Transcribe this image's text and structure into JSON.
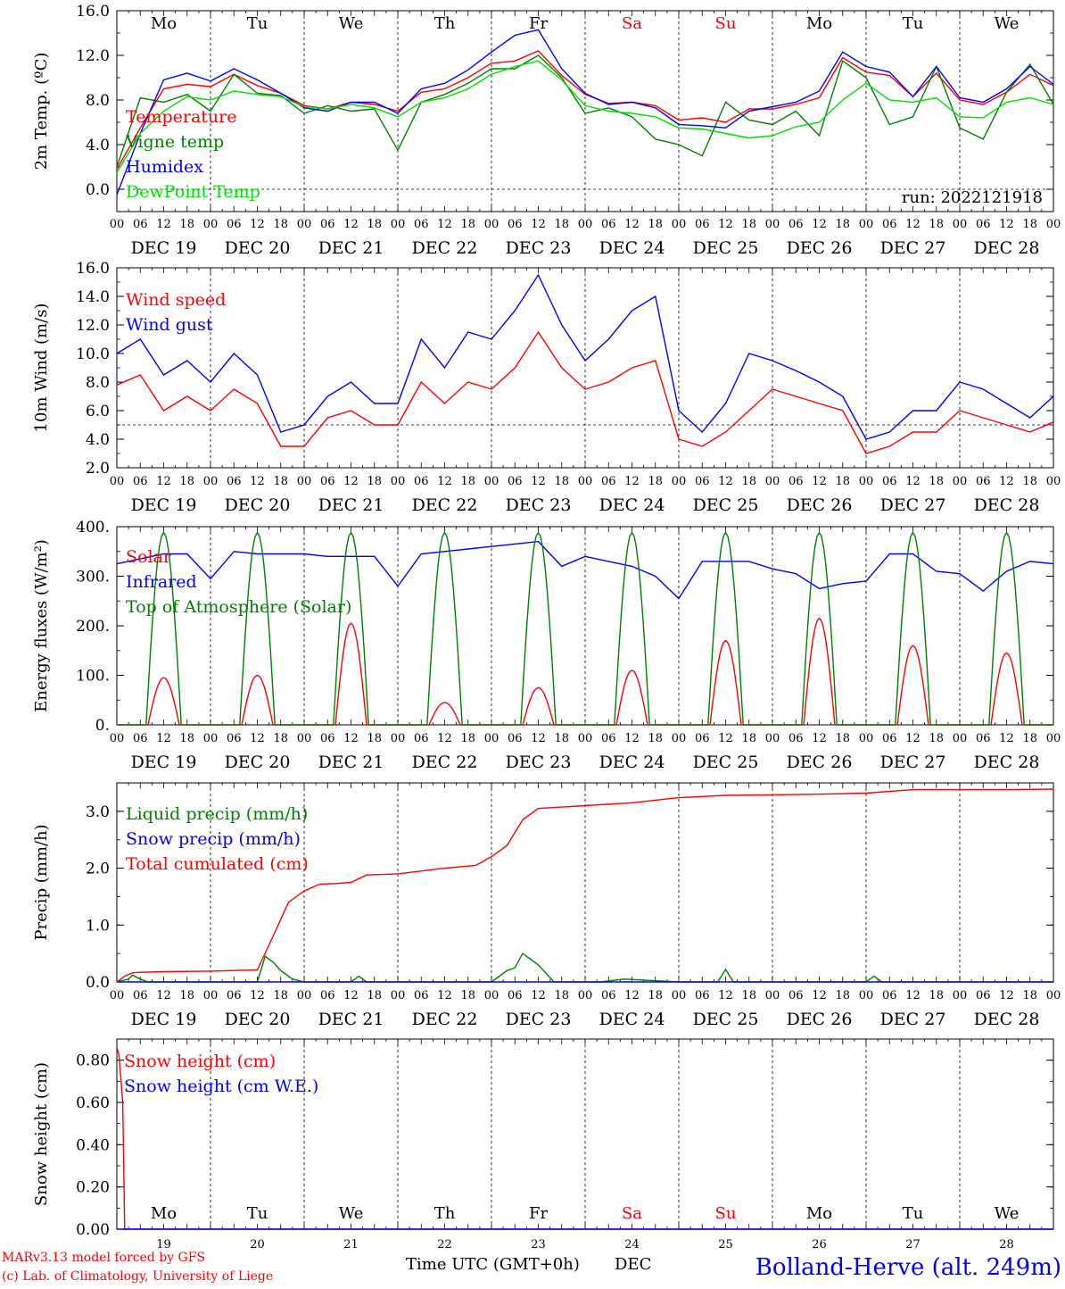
{
  "days": {
    "short": [
      "Mo",
      "Tu",
      "We",
      "Th",
      "Fr",
      "Sa",
      "Su",
      "Mo",
      "Tu",
      "We"
    ],
    "weekend": [
      false,
      false,
      false,
      false,
      false,
      true,
      true,
      false,
      false,
      false
    ],
    "dates": [
      "DEC 19",
      "DEC 20",
      "DEC 21",
      "DEC 22",
      "DEC 23",
      "DEC 24",
      "DEC 25",
      "DEC 26",
      "DEC 27",
      "DEC 28"
    ],
    "numbers": [
      "19",
      "20",
      "21",
      "22",
      "23",
      "24",
      "25",
      "26",
      "27",
      "28"
    ]
  },
  "hour_ticks": [
    "00",
    "06",
    "12",
    "18"
  ],
  "hour_end": "00",
  "colors": {
    "red": "#ff0000",
    "green": "#008000",
    "blue": "#0000ff",
    "lightgreen": "#00e000",
    "purple": "#800080"
  },
  "footer": {
    "left1": "MARv3.13 model forced by GFS",
    "left2": "(c) Lab. of Climatology, University of Liege",
    "center": "Time UTC (GMT+0h)",
    "month": "DEC",
    "station": "Bolland-Herve (alt. 249m)"
  },
  "chart_data": [
    {
      "type": "line",
      "ylabel": "2m Temp. (ºC)",
      "ylim": [
        -2,
        16
      ],
      "yticks": [
        "0.0",
        "4.0",
        "8.0",
        "12.0",
        "16.0"
      ],
      "ytick_values": [
        0,
        4,
        8,
        12,
        16
      ],
      "ref_line": 0,
      "annotation": "run: 2022121918",
      "x_unit": "hours since DEC 19 00 UTC",
      "series": [
        {
          "name": "Temperature",
          "color": "red",
          "x": [
            0,
            6,
            12,
            18,
            24,
            30,
            36,
            42,
            48,
            54,
            60,
            66,
            72,
            78,
            84,
            90,
            96,
            102,
            108,
            114,
            120,
            126,
            132,
            138,
            144,
            150,
            156,
            162,
            168,
            174,
            180,
            186,
            192,
            198,
            204,
            210,
            216,
            222,
            228,
            234,
            240
          ],
          "y": [
            1.8,
            5.5,
            9.0,
            9.4,
            9.2,
            10.3,
            9.3,
            8.6,
            7.5,
            7.2,
            7.8,
            7.6,
            7.0,
            8.7,
            9.0,
            10.0,
            11.3,
            11.5,
            12.4,
            10.2,
            8.5,
            7.7,
            7.8,
            7.5,
            6.2,
            6.4,
            6.0,
            7.2,
            7.2,
            7.6,
            8.2,
            11.8,
            10.5,
            10.2,
            8.3,
            10.4,
            8.0,
            7.6,
            8.7,
            10.3,
            9.3
          ]
        },
        {
          "name": "Vigne temp",
          "color": "green",
          "x": [
            0,
            6,
            12,
            18,
            24,
            30,
            36,
            42,
            48,
            54,
            60,
            66,
            72,
            78,
            84,
            90,
            96,
            102,
            108,
            114,
            120,
            126,
            132,
            138,
            144,
            150,
            156,
            162,
            168,
            174,
            180,
            186,
            192,
            198,
            204,
            210,
            216,
            222,
            228,
            234,
            240
          ],
          "y": [
            2.0,
            8.2,
            7.8,
            8.5,
            7.0,
            10.3,
            8.6,
            8.4,
            6.8,
            7.5,
            7.0,
            7.2,
            3.5,
            7.8,
            8.5,
            9.5,
            10.8,
            10.8,
            12.0,
            10.0,
            6.8,
            7.3,
            6.5,
            4.5,
            4.0,
            3.0,
            7.8,
            6.2,
            5.8,
            7.0,
            4.8,
            11.5,
            10.0,
            5.8,
            6.5,
            11.0,
            5.5,
            4.5,
            8.7,
            11.2,
            7.6
          ]
        },
        {
          "name": "Humidex",
          "color": "blue",
          "x": [
            0,
            6,
            12,
            18,
            24,
            30,
            36,
            42,
            48,
            54,
            60,
            66,
            72,
            78,
            84,
            90,
            96,
            102,
            108,
            114,
            120,
            126,
            132,
            138,
            144,
            150,
            156,
            162,
            168,
            174,
            180,
            186,
            192,
            198,
            204,
            210,
            216,
            222,
            228,
            234,
            240
          ],
          "y": [
            -0.5,
            5.0,
            9.8,
            10.4,
            9.7,
            10.8,
            9.8,
            8.6,
            7.3,
            7.0,
            7.8,
            7.8,
            6.8,
            9.0,
            9.5,
            10.7,
            12.3,
            13.8,
            14.3,
            10.8,
            8.6,
            7.6,
            7.8,
            7.3,
            5.8,
            5.7,
            5.5,
            7.0,
            7.4,
            7.8,
            8.8,
            12.3,
            11.0,
            10.5,
            8.3,
            11.0,
            8.2,
            7.8,
            9.0,
            11.0,
            9.4
          ]
        },
        {
          "name": "DewPoint Temp",
          "color": "lightgreen",
          "x": [
            0,
            6,
            12,
            18,
            24,
            30,
            36,
            42,
            48,
            54,
            60,
            66,
            72,
            78,
            84,
            90,
            96,
            102,
            108,
            114,
            120,
            126,
            132,
            138,
            144,
            150,
            156,
            162,
            168,
            174,
            180,
            186,
            192,
            198,
            204,
            210,
            216,
            222,
            228,
            234,
            240
          ],
          "y": [
            1.5,
            5.0,
            7.0,
            8.3,
            8.0,
            8.8,
            8.5,
            8.3,
            7.4,
            7.2,
            7.6,
            7.3,
            6.5,
            7.8,
            8.2,
            9.0,
            10.3,
            11.0,
            11.5,
            9.8,
            7.5,
            7.0,
            6.8,
            6.5,
            5.5,
            5.4,
            5.0,
            4.6,
            4.8,
            5.6,
            6.0,
            8.0,
            9.5,
            8.0,
            7.8,
            8.2,
            6.5,
            6.4,
            7.8,
            8.2,
            7.6
          ]
        }
      ]
    },
    {
      "type": "line",
      "ylabel": "10m Wind (m/s)",
      "ylim": [
        2,
        16
      ],
      "yticks": [
        "2.0",
        "4.0",
        "6.0",
        "8.0",
        "10.0",
        "12.0",
        "14.0",
        "16.0"
      ],
      "ytick_values": [
        2,
        4,
        6,
        8,
        10,
        12,
        14,
        16
      ],
      "ref_line": 5,
      "x_unit": "hours since DEC 19 00 UTC",
      "series": [
        {
          "name": "Wind speed",
          "color": "red",
          "x": [
            0,
            6,
            12,
            18,
            24,
            30,
            36,
            42,
            48,
            54,
            60,
            66,
            72,
            78,
            84,
            90,
            96,
            102,
            108,
            114,
            120,
            126,
            132,
            138,
            144,
            150,
            156,
            162,
            168,
            174,
            180,
            186,
            192,
            198,
            204,
            210,
            216,
            222,
            228,
            234,
            240
          ],
          "y": [
            7.8,
            8.5,
            6.0,
            7.0,
            6.0,
            7.5,
            6.5,
            3.5,
            3.5,
            5.5,
            6.0,
            5.0,
            5.0,
            8.0,
            6.5,
            8.0,
            7.5,
            9.0,
            11.5,
            9.0,
            7.5,
            8.0,
            9.0,
            9.5,
            4.0,
            3.5,
            4.5,
            6.0,
            7.5,
            7.0,
            6.5,
            6.0,
            3.0,
            3.5,
            4.5,
            4.5,
            6.0,
            5.5,
            5.0,
            4.5,
            5.2
          ]
        },
        {
          "name": "Wind gust",
          "color": "blue",
          "x": [
            0,
            6,
            12,
            18,
            24,
            30,
            36,
            42,
            48,
            54,
            60,
            66,
            72,
            78,
            84,
            90,
            96,
            102,
            108,
            114,
            120,
            126,
            132,
            138,
            144,
            150,
            156,
            162,
            168,
            174,
            180,
            186,
            192,
            198,
            204,
            210,
            216,
            222,
            228,
            234,
            240
          ],
          "y": [
            10.0,
            11.0,
            8.5,
            9.5,
            8.0,
            10.0,
            8.5,
            4.5,
            5.0,
            7.0,
            8.0,
            6.5,
            6.5,
            11.0,
            9.0,
            11.5,
            11.0,
            13.0,
            15.5,
            12.0,
            9.5,
            11.0,
            13.0,
            14.0,
            6.0,
            4.5,
            6.5,
            10.0,
            9.5,
            8.8,
            8.0,
            7.0,
            4.0,
            4.5,
            6.0,
            6.0,
            8.0,
            7.5,
            6.5,
            5.5,
            7.0
          ]
        }
      ]
    },
    {
      "type": "line",
      "ylabel": "Energy fluxes (W/m²)",
      "ylim": [
        0,
        400
      ],
      "yticks": [
        "0.",
        "100.",
        "200.",
        "300.",
        "400."
      ],
      "ytick_values": [
        0,
        100,
        200,
        300,
        400
      ],
      "x_unit": "hours since DEC 19 00 UTC",
      "series": [
        {
          "name": "Solar",
          "color": "red",
          "daily_peak_hour": 12,
          "daily_halfwidth_hours": 4,
          "daily_peaks": [
            95,
            100,
            205,
            45,
            75,
            110,
            170,
            215,
            160,
            145
          ]
        },
        {
          "name": "Infrared",
          "color": "blue",
          "x": [
            0,
            6,
            12,
            18,
            24,
            30,
            36,
            42,
            48,
            54,
            60,
            66,
            72,
            78,
            84,
            90,
            96,
            102,
            108,
            114,
            120,
            126,
            132,
            138,
            144,
            150,
            156,
            162,
            168,
            174,
            180,
            186,
            192,
            198,
            204,
            210,
            216,
            222,
            228,
            234,
            240
          ],
          "y": [
            325,
            335,
            345,
            345,
            295,
            350,
            345,
            345,
            345,
            340,
            340,
            340,
            280,
            345,
            350,
            355,
            360,
            365,
            370,
            320,
            340,
            330,
            320,
            300,
            255,
            330,
            330,
            330,
            315,
            305,
            275,
            285,
            290,
            345,
            345,
            310,
            305,
            270,
            310,
            330,
            325
          ]
        },
        {
          "name": "Top of Atmosphere (Solar)",
          "color": "green",
          "daily_peak_hour": 12,
          "daily_halfwidth_hours": 4.5,
          "daily_peaks": [
            388,
            388,
            388,
            388,
            388,
            388,
            388,
            388,
            388,
            388
          ]
        }
      ]
    },
    {
      "type": "line",
      "ylabel": "Precip (mm/h)",
      "ylim": [
        0,
        3.5
      ],
      "yticks": [
        "0.0",
        "1.0",
        "2.0",
        "3.0"
      ],
      "ytick_values": [
        0,
        1,
        2,
        3
      ],
      "x_unit": "hours since DEC 19 00 UTC",
      "series": [
        {
          "name": "Liquid precip (mm/h)",
          "color": "green",
          "x": [
            0,
            3,
            4,
            6,
            8,
            24,
            36,
            38,
            40,
            42,
            45,
            48,
            52,
            60,
            62,
            64,
            72,
            96,
            100,
            102,
            104,
            106,
            108,
            112,
            118,
            124,
            130,
            144,
            154,
            156,
            158,
            192,
            194,
            196,
            240
          ],
          "y": [
            0,
            0.05,
            0.12,
            0.05,
            0,
            0,
            0,
            0.45,
            0.35,
            0.2,
            0.05,
            0,
            0,
            0,
            0.1,
            0,
            0,
            0,
            0.2,
            0.25,
            0.5,
            0.4,
            0.3,
            0,
            0,
            0,
            0.05,
            0,
            0,
            0.22,
            0,
            0,
            0.1,
            0,
            0
          ]
        },
        {
          "name": "Snow precip (mm/h)",
          "color": "blue",
          "x": [
            0,
            240
          ],
          "y": [
            0,
            0
          ]
        },
        {
          "name": "Total cumulated (cm)",
          "color": "red",
          "x": [
            0,
            2,
            4,
            6,
            12,
            24,
            36,
            40,
            44,
            48,
            52,
            56,
            60,
            64,
            72,
            84,
            92,
            96,
            100,
            104,
            108,
            120,
            132,
            144,
            156,
            168,
            180,
            192,
            204,
            216,
            228,
            240
          ],
          "y": [
            0,
            0.1,
            0.16,
            0.17,
            0.18,
            0.19,
            0.21,
            0.8,
            1.4,
            1.6,
            1.72,
            1.73,
            1.75,
            1.88,
            1.9,
            2.0,
            2.05,
            2.2,
            2.4,
            2.85,
            3.05,
            3.1,
            3.15,
            3.24,
            3.28,
            3.29,
            3.3,
            3.32,
            3.38,
            3.38,
            3.38,
            3.39
          ]
        }
      ]
    },
    {
      "type": "line",
      "ylabel": "Snow height (cm)",
      "ylim": [
        0,
        0.9
      ],
      "yticks": [
        "0.00",
        "0.20",
        "0.40",
        "0.60",
        "0.80"
      ],
      "ytick_values": [
        0,
        0.2,
        0.4,
        0.6,
        0.8
      ],
      "x_unit": "hours since DEC 19 00 UTC",
      "series": [
        {
          "name": "Snow height (cm)",
          "color": "red",
          "x": [
            0,
            0.5,
            1,
            1.5,
            2,
            240
          ],
          "y": [
            0.86,
            0.83,
            0.72,
            0.6,
            0,
            0
          ]
        },
        {
          "name": "Snow height (cm W.E.)",
          "color": "blue",
          "x": [
            0,
            240
          ],
          "y": [
            0,
            0
          ]
        }
      ]
    }
  ]
}
